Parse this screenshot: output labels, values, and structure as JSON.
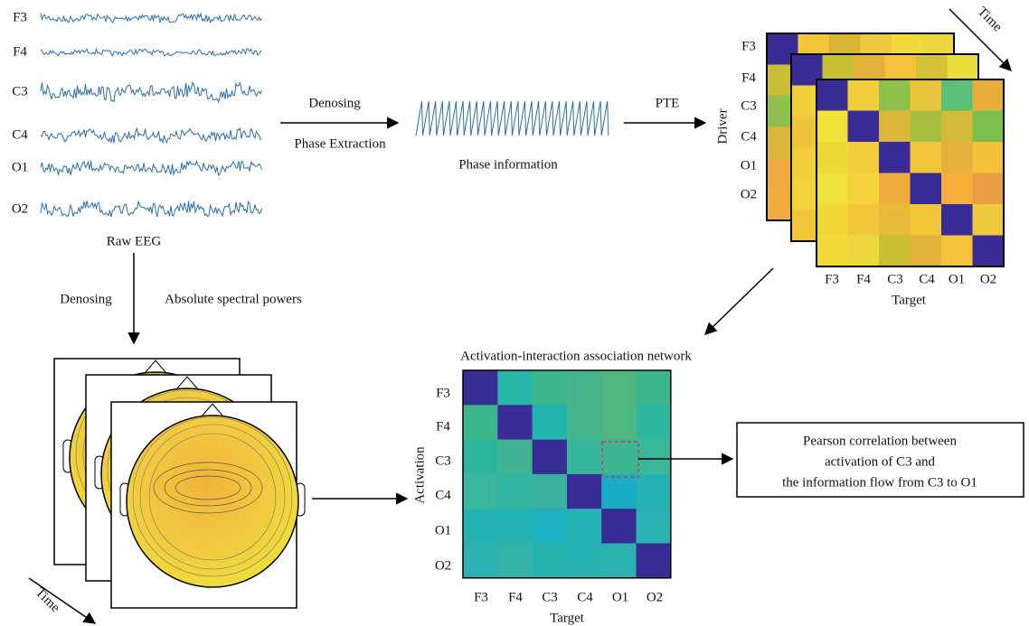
{
  "eeg": {
    "channels": [
      "F3",
      "F4",
      "C3",
      "C4",
      "O1",
      "O2"
    ],
    "caption": "Raw EEG"
  },
  "phase_step": {
    "label_top": "Denosing",
    "label_bottom": "Phase Extraction",
    "caption": "Phase information"
  },
  "pte_step": {
    "label": "PTE"
  },
  "pte_matrix": {
    "time": "Time",
    "y_label": "Driver",
    "rows": [
      "F3",
      "F4",
      "C3",
      "C4",
      "O1",
      "O2"
    ],
    "cols": [
      "F3",
      "F4",
      "C3",
      "C4",
      "O1",
      "O2"
    ],
    "x_label": "Target"
  },
  "power_step": {
    "label_left": "Denosing",
    "label_right": "Absolute spectral powers"
  },
  "topomap": {
    "time": "Time"
  },
  "network": {
    "title": "Activation-interaction association network",
    "y_label": "Activation",
    "rows": [
      "F3",
      "F4",
      "C3",
      "C4",
      "O1",
      "O2"
    ],
    "cols": [
      "F3",
      "F4",
      "C3",
      "C4",
      "O1",
      "O2"
    ],
    "x_label": "Target"
  },
  "note": {
    "lines": [
      "Pearson correlation between",
      "activation of C3 and",
      "the information flow from C3 to O1"
    ]
  }
}
